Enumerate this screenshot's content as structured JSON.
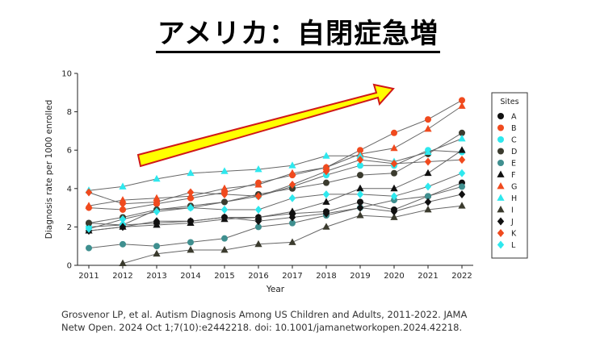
{
  "title": "アメリカ：自閉症急増",
  "caption": {
    "line1": "Grosvenor LP, et al. Autism Diagnosis Among US Children and Adults, 2011-2022. JAMA",
    "line2": "Netw Open. 2024 Oct 1;7(10):e2442218. doi: 10.1001/jamanetworkopen.2024.42218."
  },
  "chart_data": {
    "type": "line",
    "xlabel": "Year",
    "ylabel": "Diagnosis rate per 1000 enrolled",
    "ylim": [
      0,
      10
    ],
    "yticks": [
      0,
      2,
      4,
      6,
      8,
      10
    ],
    "x": [
      2011,
      2012,
      2013,
      2014,
      2015,
      2016,
      2017,
      2018,
      2019,
      2020,
      2021,
      2022
    ],
    "legend_title": "Sites",
    "legend_position": "right",
    "grid": false,
    "series": [
      {
        "name": "A",
        "color": "#111111",
        "marker": "circle",
        "values": [
          2.2,
          2.1,
          2.2,
          2.3,
          2.5,
          2.5,
          2.7,
          2.8,
          3.3,
          2.9,
          3.6,
          4.3
        ]
      },
      {
        "name": "B",
        "color": "#f04a1e",
        "marker": "circle",
        "values": [
          3.0,
          2.9,
          3.2,
          3.5,
          3.8,
          4.3,
          4.7,
          5.1,
          6.0,
          6.9,
          7.6,
          8.6
        ]
      },
      {
        "name": "C",
        "color": "#2ee8ee",
        "marker": "circle",
        "values": [
          2.0,
          2.1,
          2.9,
          3.0,
          3.3,
          3.6,
          4.1,
          4.7,
          5.2,
          5.2,
          6.0,
          5.9
        ]
      },
      {
        "name": "D",
        "color": "#3b3b2e",
        "marker": "circle",
        "values": [
          2.2,
          2.5,
          2.9,
          3.1,
          3.3,
          3.7,
          4.0,
          4.3,
          4.7,
          4.8,
          5.8,
          6.9
        ]
      },
      {
        "name": "E",
        "color": "#3f8f8f",
        "marker": "circle",
        "values": [
          0.9,
          1.1,
          1.0,
          1.2,
          1.4,
          2.0,
          2.2,
          2.6,
          3.0,
          3.4,
          3.6,
          4.1
        ]
      },
      {
        "name": "F",
        "color": "#111111",
        "marker": "triangle",
        "values": [
          1.8,
          2.0,
          2.1,
          2.2,
          2.4,
          2.5,
          2.8,
          3.3,
          4.0,
          4.0,
          4.8,
          6.0
        ]
      },
      {
        "name": "G",
        "color": "#f04a1e",
        "marker": "triangle",
        "values": [
          3.1,
          3.4,
          3.5,
          3.6,
          4.0,
          4.2,
          4.8,
          5.1,
          5.8,
          6.1,
          7.1,
          8.3
        ]
      },
      {
        "name": "H",
        "color": "#2ee8ee",
        "marker": "triangle",
        "values": [
          3.9,
          4.1,
          4.5,
          4.8,
          4.9,
          5.0,
          5.2,
          5.7,
          5.7,
          5.4,
          5.9,
          6.6
        ]
      },
      {
        "name": "I",
        "color": "#3b3b2e",
        "marker": "triangle",
        "values": [
          null,
          0.1,
          0.6,
          0.8,
          0.8,
          1.1,
          1.2,
          2.0,
          2.6,
          2.5,
          2.9,
          3.1
        ]
      },
      {
        "name": "J",
        "color": "#111111",
        "marker": "diamond",
        "values": [
          1.8,
          2.0,
          2.3,
          2.3,
          2.5,
          2.3,
          2.5,
          2.7,
          3.0,
          2.8,
          3.3,
          3.7
        ]
      },
      {
        "name": "K",
        "color": "#f04a1e",
        "marker": "diamond",
        "values": [
          3.8,
          3.2,
          3.3,
          3.8,
          3.7,
          3.6,
          4.2,
          4.9,
          5.5,
          5.3,
          5.4,
          5.5
        ]
      },
      {
        "name": "L",
        "color": "#2ee8ee",
        "marker": "diamond",
        "values": [
          1.9,
          2.4,
          2.8,
          3.0,
          2.9,
          2.9,
          3.5,
          3.7,
          3.7,
          3.6,
          4.1,
          4.8
        ]
      }
    ]
  }
}
